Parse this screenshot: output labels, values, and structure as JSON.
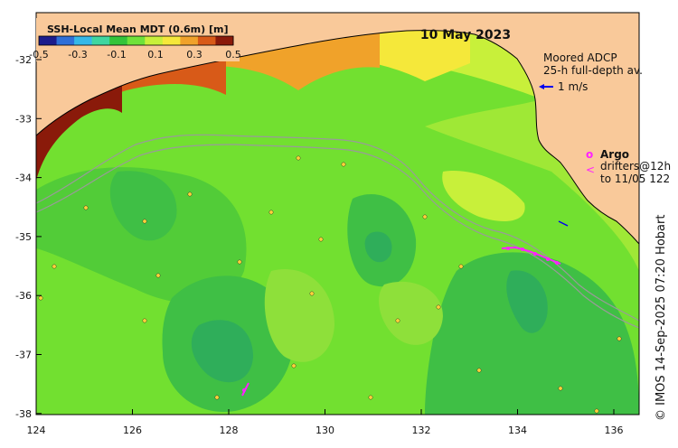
{
  "title": "10 May 2023",
  "colorbar": {
    "label": "SSH-Local Mean MDT (0.6m) [m]",
    "ticks": [
      "-0.5",
      "-0.3",
      "-0.1",
      "0.1",
      "0.3",
      "0.5"
    ],
    "colors": [
      "#1c1c8c",
      "#2e6fd8",
      "#35b8e8",
      "#3fd6a0",
      "#33c43a",
      "#6fe23a",
      "#c8f03a",
      "#f5e83a",
      "#f0a22a",
      "#d85a18",
      "#8a1a0a"
    ]
  },
  "adcp_legend": {
    "line1": "Moored ADCP",
    "line2": "25-h full-depth av.",
    "scale_label": "1 m/s",
    "arrow_color": "#0000ee"
  },
  "argo_legend": {
    "symbol": "o",
    "label": "Argo",
    "drifter_symbol": "<",
    "drifter_line1": "drifters@12h",
    "drifter_line2": "to 11/05 122",
    "color": "#ff22ff"
  },
  "axes": {
    "lon_ticks": [
      "124",
      "126",
      "128",
      "130",
      "132",
      "134",
      "136"
    ],
    "lat_ticks": [
      "-32",
      "-33",
      "-34",
      "-35",
      "-36",
      "-37",
      "-38"
    ]
  },
  "credit": "© IMOS 14-Sep-2025 07:20 Hobart",
  "colors": {
    "land": "#f9c99a",
    "ocean_base": "#72e030",
    "contour_line": "#9a9a9a"
  }
}
